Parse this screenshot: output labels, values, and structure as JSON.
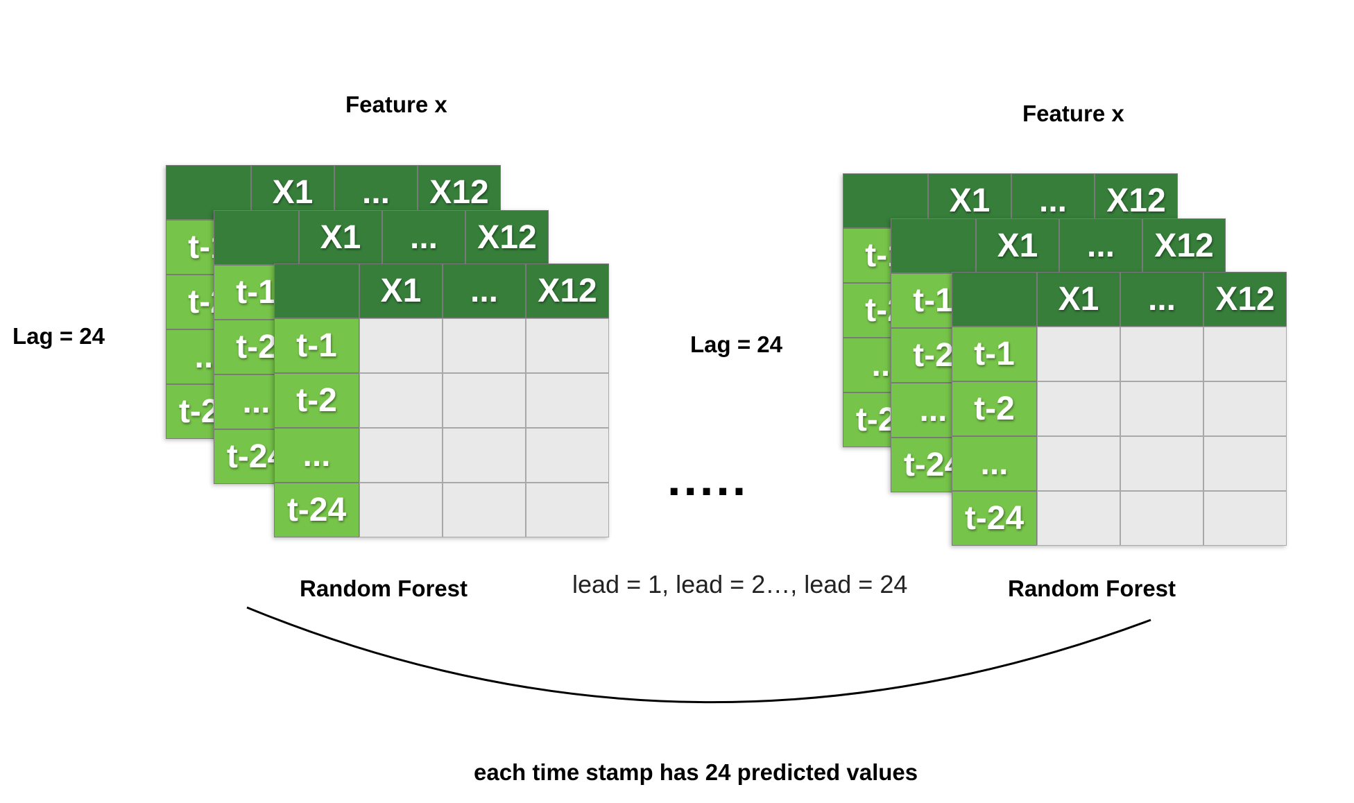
{
  "left": {
    "feature_label": "Feature x",
    "lag_label": "Lag = 24",
    "model_label": "Random Forest"
  },
  "right": {
    "feature_label": "Feature x",
    "lag_label": "Lag = 24",
    "model_label": "Random Forest"
  },
  "table": {
    "columns": [
      "",
      "X1",
      "...",
      "X12"
    ],
    "rows": [
      "t-1",
      "t-2",
      "...",
      "t-24"
    ]
  },
  "ellipsis": ".....",
  "lead_text": "lead = 1, lead = 2…, lead = 24",
  "caption": "each time stamp has 24 predicted values",
  "colors": {
    "header_dark_green": "#367e3a",
    "row_light_green": "#77c44a",
    "body_grey": "#e9e9e9"
  }
}
